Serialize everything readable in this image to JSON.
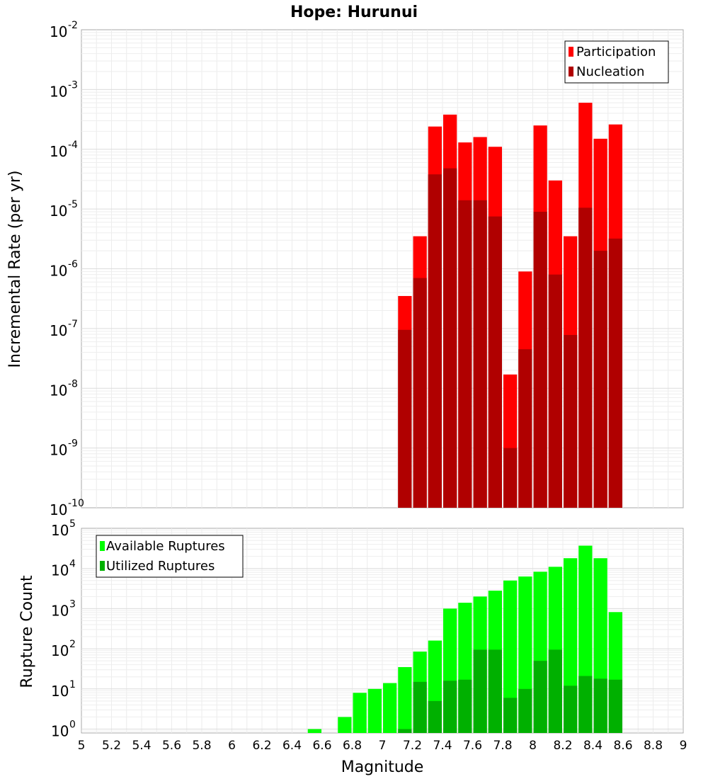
{
  "chart_data": [
    {
      "type": "bar",
      "title": "Hope: Hurunui",
      "xlabel": "",
      "ylabel": "Incremental Rate (per yr)",
      "yscale": "log",
      "ylim": [
        1e-10,
        0.01
      ],
      "xlim": [
        5,
        9
      ],
      "y_tick_exponents": [
        -10,
        -9,
        -8,
        -7,
        -6,
        -5,
        -4,
        -3,
        -2
      ],
      "legend": {
        "placement": "top-right",
        "entries": [
          "Participation",
          "Nucleation"
        ]
      },
      "colors": {
        "Participation": "#ff0000",
        "Nucleation": "#b00000"
      },
      "x": [
        7.15,
        7.25,
        7.35,
        7.45,
        7.55,
        7.65,
        7.75,
        7.85,
        7.95,
        8.05,
        8.15,
        8.25,
        8.35,
        8.45,
        8.55
      ],
      "series": [
        {
          "name": "Participation",
          "values": [
            3.5e-07,
            3.5e-06,
            0.00024,
            0.00038,
            0.00013,
            0.00016,
            0.00011,
            1.7e-08,
            9e-07,
            0.00025,
            3e-05,
            3.5e-06,
            0.0006,
            0.00015,
            0.00026
          ]
        },
        {
          "name": "Nucleation",
          "values": [
            9.5e-08,
            7e-07,
            3.8e-05,
            4.8e-05,
            1.4e-05,
            1.4e-05,
            7.5e-06,
            1e-09,
            4.5e-08,
            9e-06,
            8e-07,
            7.8e-08,
            1.05e-05,
            2e-06,
            3.2e-06
          ]
        }
      ]
    },
    {
      "type": "bar",
      "xlabel": "Magnitude",
      "ylabel": "Rupture Count",
      "yscale": "log",
      "ylim": [
        0.8,
        100000.0
      ],
      "xlim": [
        5,
        9
      ],
      "x_ticks": [
        "5",
        "5.2",
        "5.4",
        "5.6",
        "5.8",
        "6",
        "6.2",
        "6.4",
        "6.6",
        "6.8",
        "7",
        "7.2",
        "7.4",
        "7.6",
        "7.8",
        "8",
        "8.2",
        "8.4",
        "8.6",
        "8.8",
        "9"
      ],
      "y_tick_exponents": [
        0,
        1,
        2,
        3,
        4,
        5
      ],
      "legend": {
        "placement": "top-left",
        "entries": [
          "Available Ruptures",
          "Utilized Ruptures"
        ]
      },
      "colors": {
        "Available Ruptures": "#00ff00",
        "Utilized Ruptures": "#00b000"
      },
      "x": [
        6.55,
        6.75,
        6.85,
        6.95,
        7.05,
        7.15,
        7.25,
        7.35,
        7.45,
        7.55,
        7.65,
        7.75,
        7.85,
        7.95,
        8.05,
        8.15,
        8.25,
        8.35,
        8.45,
        8.55
      ],
      "series": [
        {
          "name": "Available Ruptures",
          "values": [
            1,
            2,
            8,
            10,
            14,
            35,
            85,
            160,
            1000,
            1400,
            2000,
            2800,
            5000,
            6300,
            8300,
            11000,
            18000,
            37000,
            18000,
            820
          ]
        },
        {
          "name": "Utilized Ruptures",
          "values": [
            0,
            0,
            0,
            0,
            0,
            1,
            15,
            5,
            16,
            17,
            95,
            95,
            6,
            10,
            50,
            95,
            12,
            21,
            18,
            17
          ]
        }
      ]
    }
  ]
}
